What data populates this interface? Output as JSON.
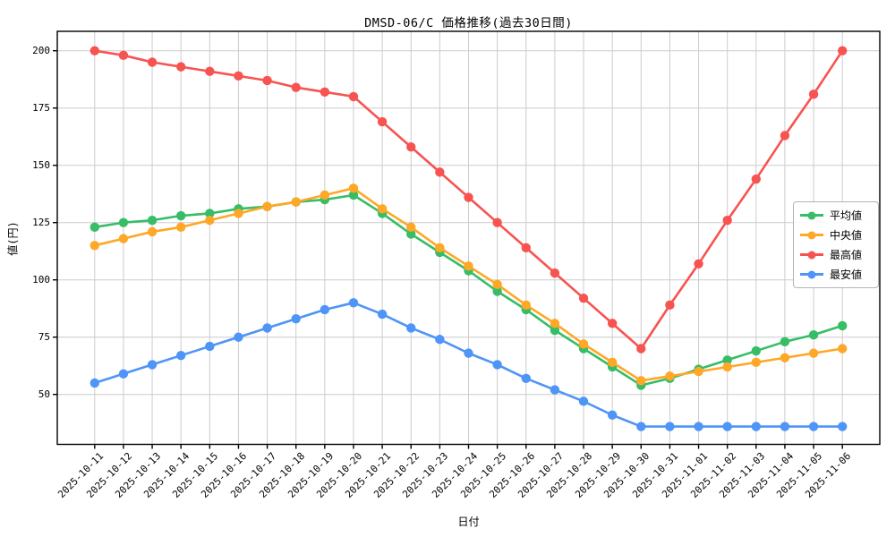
{
  "chart_data": {
    "type": "line",
    "title": "DMSD-06/C 価格推移(過去30日間)",
    "xlabel": "日付",
    "ylabel": "値(円)",
    "grid": true,
    "legend_position": "right-middle",
    "yticks": [
      50,
      75,
      100,
      125,
      150,
      175,
      200
    ],
    "ylim": [
      28,
      208.5
    ],
    "categories": [
      "2025-10-11",
      "2025-10-12",
      "2025-10-13",
      "2025-10-14",
      "2025-10-15",
      "2025-10-16",
      "2025-10-17",
      "2025-10-18",
      "2025-10-19",
      "2025-10-20",
      "2025-10-21",
      "2025-10-22",
      "2025-10-23",
      "2025-10-24",
      "2025-10-25",
      "2025-10-26",
      "2025-10-27",
      "2025-10-28",
      "2025-10-29",
      "2025-10-30",
      "2025-10-31",
      "2025-11-01",
      "2025-11-02",
      "2025-11-03",
      "2025-11-04",
      "2025-11-05",
      "2025-11-06"
    ],
    "series": [
      {
        "name": "平均値",
        "color": "#36bd66",
        "values": [
          123,
          125,
          126,
          128,
          129,
          131,
          132,
          134,
          135,
          137,
          129,
          120,
          112,
          104,
          95,
          87,
          78,
          70,
          62,
          54,
          57,
          61,
          65,
          69,
          73,
          76,
          80
        ]
      },
      {
        "name": "中央値",
        "color": "#ffa726",
        "values": [
          115,
          118,
          121,
          123,
          126,
          129,
          132,
          134,
          137,
          140,
          131,
          123,
          114,
          106,
          98,
          89,
          81,
          72,
          64,
          56,
          58,
          60,
          62,
          64,
          66,
          68,
          70
        ]
      },
      {
        "name": "最高値",
        "color": "#f75351",
        "values": [
          200,
          198,
          195,
          193,
          191,
          189,
          187,
          184,
          182,
          180,
          169,
          158,
          147,
          136,
          125,
          114,
          103,
          92,
          81,
          70,
          89,
          107,
          126,
          144,
          163,
          181,
          200
        ]
      },
      {
        "name": "最安値",
        "color": "#4e95f7",
        "values": [
          55,
          59,
          63,
          67,
          71,
          75,
          79,
          83,
          87,
          90,
          85,
          79,
          74,
          68,
          63,
          57,
          52,
          47,
          41,
          36,
          36,
          36,
          36,
          36,
          36,
          36,
          36
        ]
      }
    ],
    "style": {
      "grid_color": "#cccccc",
      "spine_color": "#000000",
      "background": "#ffffff"
    }
  }
}
